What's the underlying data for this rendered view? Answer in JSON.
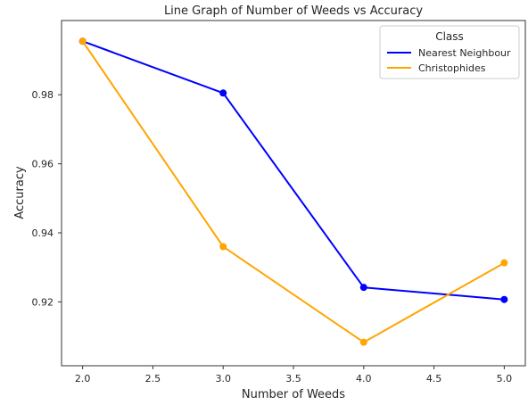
{
  "chart_data": {
    "type": "line",
    "title": "Line Graph of Number of Weeds vs Accuracy",
    "xlabel": "Number of Weeds",
    "ylabel": "Accuracy",
    "xlim": [
      1.85,
      5.15
    ],
    "ylim": [
      0.9015,
      1.0015
    ],
    "x_ticks": [
      2.0,
      2.5,
      3.0,
      3.5,
      4.0,
      4.5,
      5.0
    ],
    "x_tick_labels": [
      "2.0",
      "2.5",
      "3.0",
      "3.5",
      "4.0",
      "4.5",
      "5.0"
    ],
    "y_ticks": [
      0.92,
      0.94,
      0.96,
      0.98
    ],
    "y_tick_labels": [
      "0.92",
      "0.94",
      "0.96",
      "0.98"
    ],
    "grid": false,
    "legend": {
      "title": "Class",
      "position": "top-right"
    },
    "x": [
      2.0,
      3.0,
      4.0,
      5.0
    ],
    "series": [
      {
        "name": "Nearest Neighbour",
        "color": "#0000ff",
        "values": [
          0.9955,
          0.9805,
          0.9242,
          0.9207
        ]
      },
      {
        "name": "Christophides",
        "color": "#ffa500",
        "values": [
          0.9955,
          0.936,
          0.9083,
          0.9313
        ]
      }
    ]
  }
}
